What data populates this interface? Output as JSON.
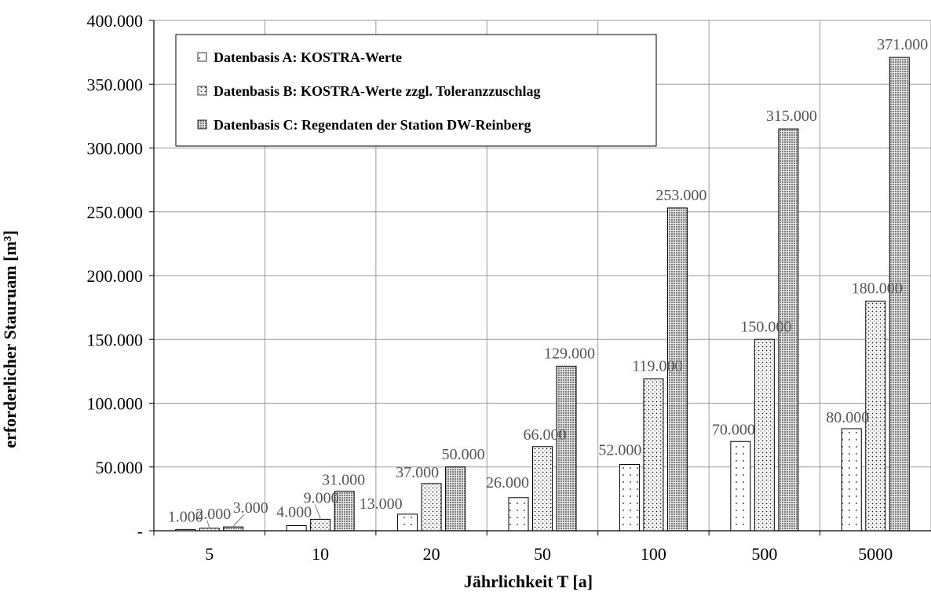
{
  "chart_data": {
    "type": "bar",
    "xlabel": "Jährlichkeit T [a]",
    "ylabel": "erforderlicher Stauruam [m³]",
    "ylim": [
      0,
      400000
    ],
    "yticks": [
      "-",
      "50.000",
      "100.000",
      "150.000",
      "200.000",
      "250.000",
      "300.000",
      "350.000",
      "400.000"
    ],
    "grid": true,
    "legend_position": "top-left",
    "categories": [
      "5",
      "10",
      "20",
      "50",
      "100",
      "500",
      "5000"
    ],
    "series": [
      {
        "name": "Datenbasis A: KOSTRA-Werte",
        "values": [
          1000,
          4000,
          13000,
          26000,
          52000,
          70000,
          80000
        ],
        "labels": [
          "1.000",
          "4.000",
          "13.000",
          "26.000",
          "52.000",
          "70.000",
          "80.000"
        ],
        "pattern": "sparse-dots"
      },
      {
        "name": "Datenbasis B: KOSTRA-Werte zzgl. Toleranzzuschlag",
        "values": [
          2000,
          9000,
          37000,
          66000,
          119000,
          150000,
          180000
        ],
        "labels": [
          "2.000",
          "9.000",
          "37.000",
          "66.000",
          "119.000",
          "150.000",
          "180.000"
        ],
        "pattern": "medium-dots"
      },
      {
        "name": "Datenbasis C: Regendaten der Station DW-Reinberg",
        "values": [
          3000,
          31000,
          50000,
          129000,
          253000,
          315000,
          371000
        ],
        "labels": [
          "3.000",
          "31.000",
          "50.000",
          "129.000",
          "253.000",
          "315.000",
          "371.000"
        ],
        "pattern": "dense-dots"
      }
    ]
  }
}
